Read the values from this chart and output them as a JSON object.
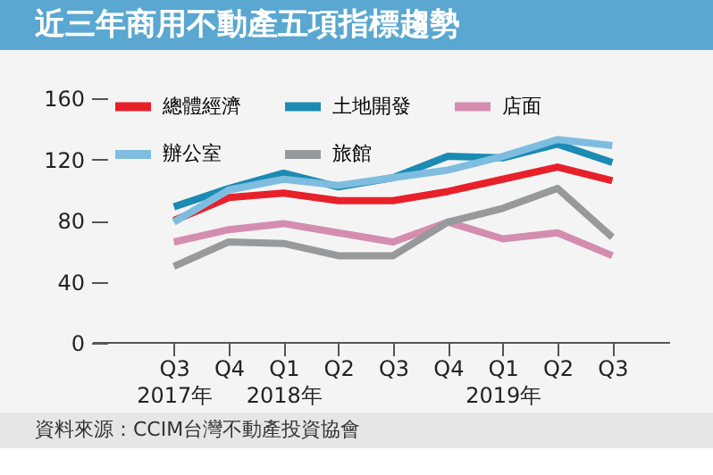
{
  "chart_data": {
    "type": "line",
    "title": "近三年商用不動產五項指標趨勢",
    "categories": [
      "Q3\n2017年",
      "Q4",
      "Q1\n2018年",
      "Q2",
      "Q3",
      "Q4",
      "Q1\n2019年",
      "Q2",
      "Q3"
    ],
    "series": [
      {
        "name": "總體經濟",
        "color": "#e8202a",
        "values": [
          80,
          95,
          98,
          93,
          93,
          99,
          107,
          115,
          106
        ]
      },
      {
        "name": "土地開發",
        "color": "#1b8bb3",
        "values": [
          89,
          101,
          111,
          102,
          108,
          122,
          121,
          130,
          118
        ]
      },
      {
        "name": "店面",
        "color": "#d48db0",
        "values": [
          66,
          74,
          78,
          72,
          66,
          79,
          68,
          72,
          57
        ]
      },
      {
        "name": "辦公室",
        "color": "#7fbde0",
        "values": [
          79,
          100,
          107,
          103,
          108,
          113,
          122,
          133,
          129
        ]
      },
      {
        "name": "旅館",
        "color": "#97999b",
        "values": [
          50,
          66,
          65,
          57,
          57,
          79,
          88,
          101,
          69
        ]
      }
    ],
    "ylim": [
      0,
      160
    ],
    "yticks": [
      0,
      40,
      80,
      120,
      160
    ],
    "grid": false,
    "legend": "top",
    "marker": "none",
    "line_style": "solid",
    "annotations": [
      "資料來源：CCIM台灣不動產投資協會"
    ]
  }
}
